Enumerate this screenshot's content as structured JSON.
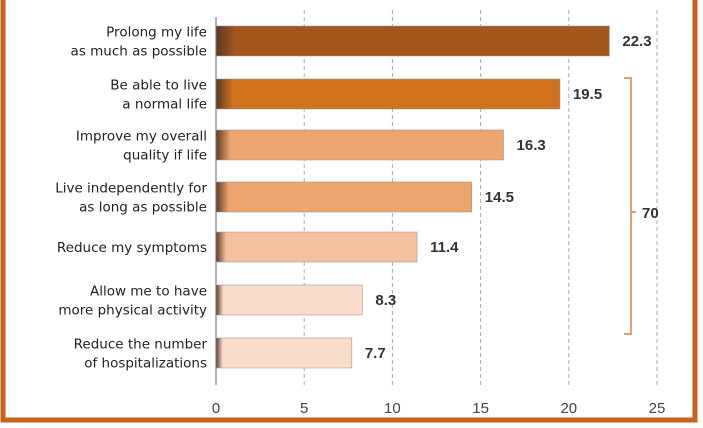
{
  "chart_data": {
    "type": "bar",
    "orientation": "horizontal",
    "categories": [
      [
        "Prolong my life",
        "as much as possible"
      ],
      [
        "Be able to live",
        "a normal life"
      ],
      [
        "Improve my overall",
        "quality if life"
      ],
      [
        "Live independently for",
        "as long as possible"
      ],
      [
        "Reduce my symptoms"
      ],
      [
        "Allow me to have",
        "more physical activity"
      ],
      [
        "Reduce the number",
        "of hospitalizations"
      ]
    ],
    "values": [
      22.3,
      19.5,
      16.3,
      14.5,
      11.4,
      8.3,
      7.7
    ],
    "value_labels": [
      "22.3",
      "19.5",
      "16.3",
      "14.5",
      "11.4",
      "8.3",
      "7.7"
    ],
    "colors": [
      "#a2561c",
      "#d0711b",
      "#eea46e",
      "#eea46e",
      "#f4c19f",
      "#fadccb",
      "#fadccb"
    ],
    "xlim": [
      0,
      25
    ],
    "xticks": [
      "0",
      "5",
      "10",
      "15",
      "20",
      "25"
    ],
    "grid": "vertical dashed",
    "bracket": {
      "from_index": 1,
      "to_index": 6,
      "label": "70"
    },
    "frame_color": "#c8621e"
  }
}
